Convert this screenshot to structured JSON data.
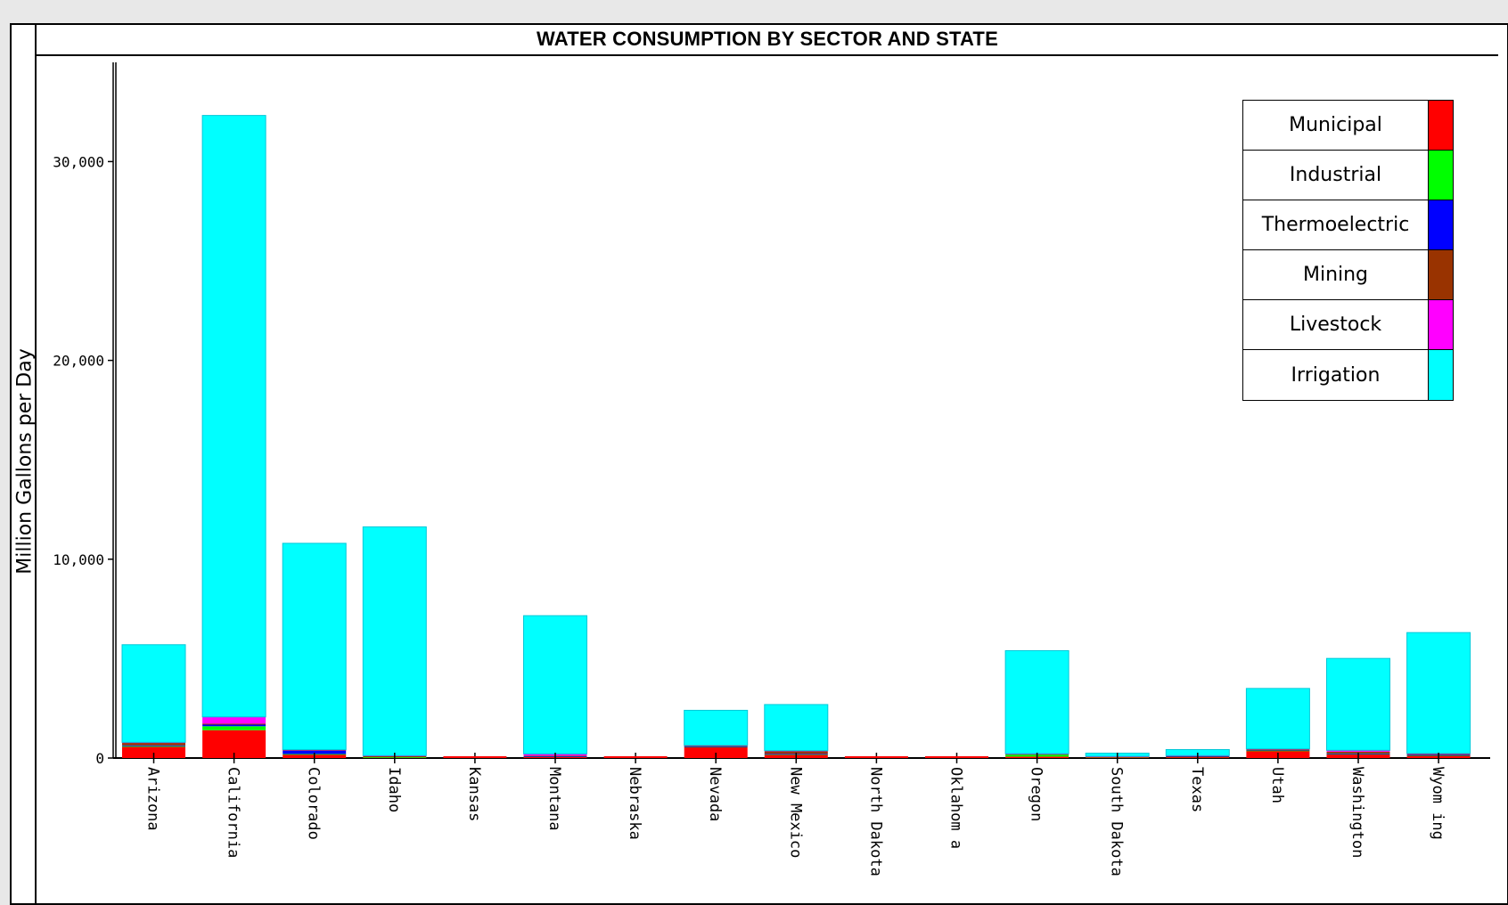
{
  "chart_data": {
    "type": "bar",
    "stacked": true,
    "title": "WATER CONSUMPTION BY SECTOR AND STATE",
    "xlabel": "",
    "ylabel": "Million Gallons per Day",
    "ylim": [
      0,
      35000
    ],
    "yticks": [
      0,
      10000,
      20000,
      30000
    ],
    "ytick_labels": [
      "0",
      "10,000",
      "20,000",
      "30,000"
    ],
    "grid": false,
    "legend_position": "top-right",
    "categories": [
      "Arizona",
      "California",
      "Colorado",
      "Idaho",
      "Kansas",
      "Montana",
      "Nebraska",
      "Nevada",
      "New Mexico",
      "North Dakota",
      "Oklahom a",
      "Oregon",
      "South Dakota",
      "Texas",
      "Utah",
      "Washington",
      "Wyom ing"
    ],
    "series": [
      {
        "name": "Municipal",
        "color": "#ff0000",
        "values": [
          560,
          1400,
          180,
          40,
          0,
          70,
          0,
          560,
          170,
          0,
          0,
          70,
          60,
          70,
          360,
          190,
          130
        ]
      },
      {
        "name": "Industrial",
        "color": "#00ff00",
        "values": [
          40,
          200,
          20,
          5,
          0,
          10,
          0,
          10,
          20,
          0,
          0,
          110,
          5,
          5,
          20,
          20,
          10
        ]
      },
      {
        "name": "Thermoelectric",
        "color": "#0000ff",
        "values": [
          40,
          80,
          180,
          0,
          0,
          10,
          0,
          20,
          20,
          0,
          0,
          0,
          0,
          10,
          30,
          20,
          20
        ]
      },
      {
        "name": "Mining",
        "color": "#993300",
        "values": [
          120,
          50,
          20,
          60,
          0,
          30,
          0,
          30,
          130,
          0,
          0,
          20,
          10,
          20,
          20,
          90,
          50
        ]
      },
      {
        "name": "Livestock",
        "color": "#ff00ff",
        "values": [
          30,
          340,
          20,
          20,
          0,
          90,
          0,
          20,
          30,
          0,
          0,
          20,
          10,
          20,
          30,
          70,
          20
        ]
      },
      {
        "name": "Irrigation",
        "color": "#00ffff",
        "values": [
          4910,
          30250,
          10380,
          11500,
          0,
          6950,
          0,
          1760,
          2320,
          0,
          0,
          5180,
          160,
          300,
          3040,
          4620,
          6080
        ]
      }
    ]
  }
}
